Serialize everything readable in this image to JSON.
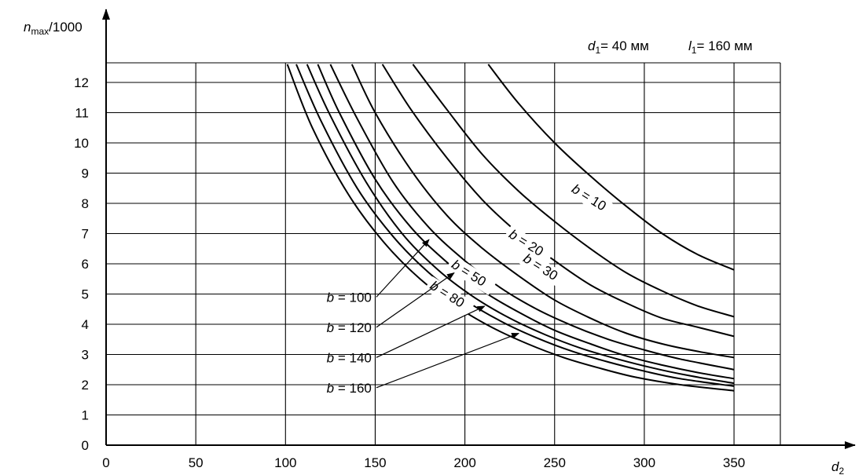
{
  "chart_data": {
    "type": "line",
    "ylabel": {
      "var": "n",
      "sub": "max",
      "rest": "/1000"
    },
    "xlabel": {
      "var": "d",
      "sub": "2"
    },
    "params": [
      {
        "var": "d",
        "sub": "1",
        "value": "= 40 мм"
      },
      {
        "var": "l",
        "sub": "1",
        "value": "= 160 мм"
      }
    ],
    "xlim": [
      0,
      375
    ],
    "ylim": [
      0,
      12.6
    ],
    "x_ticks": [
      "0",
      "50",
      "100",
      "150",
      "200",
      "250",
      "300",
      "350"
    ],
    "y_ticks": [
      "0",
      "1",
      "2",
      "3",
      "4",
      "5",
      "6",
      "7",
      "8",
      "9",
      "10",
      "11",
      "12"
    ],
    "grid": true,
    "series": [
      {
        "name": "b = 10",
        "x": [
          213,
          230,
          250,
          270,
          290,
          310,
          330,
          350
        ],
        "y": [
          12.6,
          11.3,
          10.0,
          8.9,
          7.9,
          7.0,
          6.3,
          5.8
        ]
      },
      {
        "name": "b = 20",
        "x": [
          171,
          190,
          210,
          230,
          250,
          270,
          290,
          310,
          330,
          350
        ],
        "y": [
          12.6,
          11.1,
          9.6,
          8.4,
          7.4,
          6.5,
          5.7,
          5.1,
          4.6,
          4.25
        ]
      },
      {
        "name": "b = 30",
        "x": [
          154,
          170,
          190,
          210,
          230,
          250,
          270,
          290,
          310,
          330,
          350
        ],
        "y": [
          12.6,
          11.1,
          9.5,
          8.1,
          7.0,
          6.1,
          5.3,
          4.7,
          4.2,
          3.9,
          3.6
        ]
      },
      {
        "name": "b = 50",
        "x": [
          137,
          150,
          170,
          190,
          210,
          230,
          250,
          270,
          290,
          310,
          330,
          350
        ],
        "y": [
          12.6,
          11.0,
          9.1,
          7.6,
          6.5,
          5.6,
          4.8,
          4.2,
          3.7,
          3.35,
          3.1,
          2.9
        ]
      },
      {
        "name": "b = 80",
        "x": [
          125,
          140,
          160,
          180,
          200,
          220,
          240,
          260,
          280,
          300,
          320,
          350
        ],
        "y": [
          12.6,
          10.8,
          8.7,
          7.2,
          6.1,
          5.2,
          4.5,
          3.95,
          3.5,
          3.15,
          2.85,
          2.5
        ]
      },
      {
        "name": "b = 100",
        "x": [
          118,
          130,
          150,
          170,
          190,
          210,
          230,
          250,
          270,
          290,
          310,
          330,
          350
        ],
        "y": [
          12.6,
          11.0,
          8.8,
          7.2,
          6.05,
          5.1,
          4.4,
          3.8,
          3.35,
          2.95,
          2.65,
          2.4,
          2.2
        ]
      },
      {
        "name": "b = 120",
        "x": [
          112,
          125,
          145,
          165,
          185,
          205,
          225,
          245,
          265,
          285,
          305,
          325,
          350
        ],
        "y": [
          12.6,
          10.9,
          8.7,
          7.0,
          5.8,
          4.9,
          4.2,
          3.65,
          3.2,
          2.85,
          2.55,
          2.3,
          2.05
        ]
      },
      {
        "name": "b = 140",
        "x": [
          106,
          120,
          140,
          160,
          180,
          200,
          220,
          240,
          260,
          280,
          300,
          320,
          350
        ],
        "y": [
          12.6,
          10.7,
          8.5,
          6.9,
          5.7,
          4.8,
          4.1,
          3.55,
          3.1,
          2.75,
          2.45,
          2.2,
          1.95
        ]
      },
      {
        "name": "b = 160",
        "x": [
          101,
          115,
          135,
          155,
          175,
          195,
          215,
          235,
          255,
          275,
          295,
          320,
          350
        ],
        "y": [
          12.6,
          10.5,
          8.3,
          6.7,
          5.5,
          4.6,
          3.9,
          3.35,
          2.9,
          2.55,
          2.25,
          2.0,
          1.8
        ]
      }
    ],
    "labels_on_curve": [
      {
        "text": "b = 10",
        "x": 259,
        "y": 8.4,
        "angle": 32
      },
      {
        "text": "b = 20",
        "x": 224,
        "y": 6.9,
        "angle": 32
      },
      {
        "text": "b = 30",
        "x": 232,
        "y": 6.1,
        "angle": 32
      },
      {
        "text": "b = 50",
        "x": 192,
        "y": 5.9,
        "angle": 32
      },
      {
        "text": "b = 80",
        "x": 180,
        "y": 5.2,
        "angle": 32
      }
    ],
    "labels_leader": [
      {
        "text": "b = 100",
        "x": 148,
        "y": 4.9,
        "tx": 180,
        "ty": 6.8
      },
      {
        "text": "b = 120",
        "x": 148,
        "y": 3.9,
        "tx": 194,
        "ty": 5.7
      },
      {
        "text": "b = 140",
        "x": 148,
        "y": 2.9,
        "tx": 211,
        "ty": 4.6
      },
      {
        "text": "b = 160",
        "x": 148,
        "y": 1.9,
        "tx": 230,
        "ty": 3.7
      }
    ]
  }
}
